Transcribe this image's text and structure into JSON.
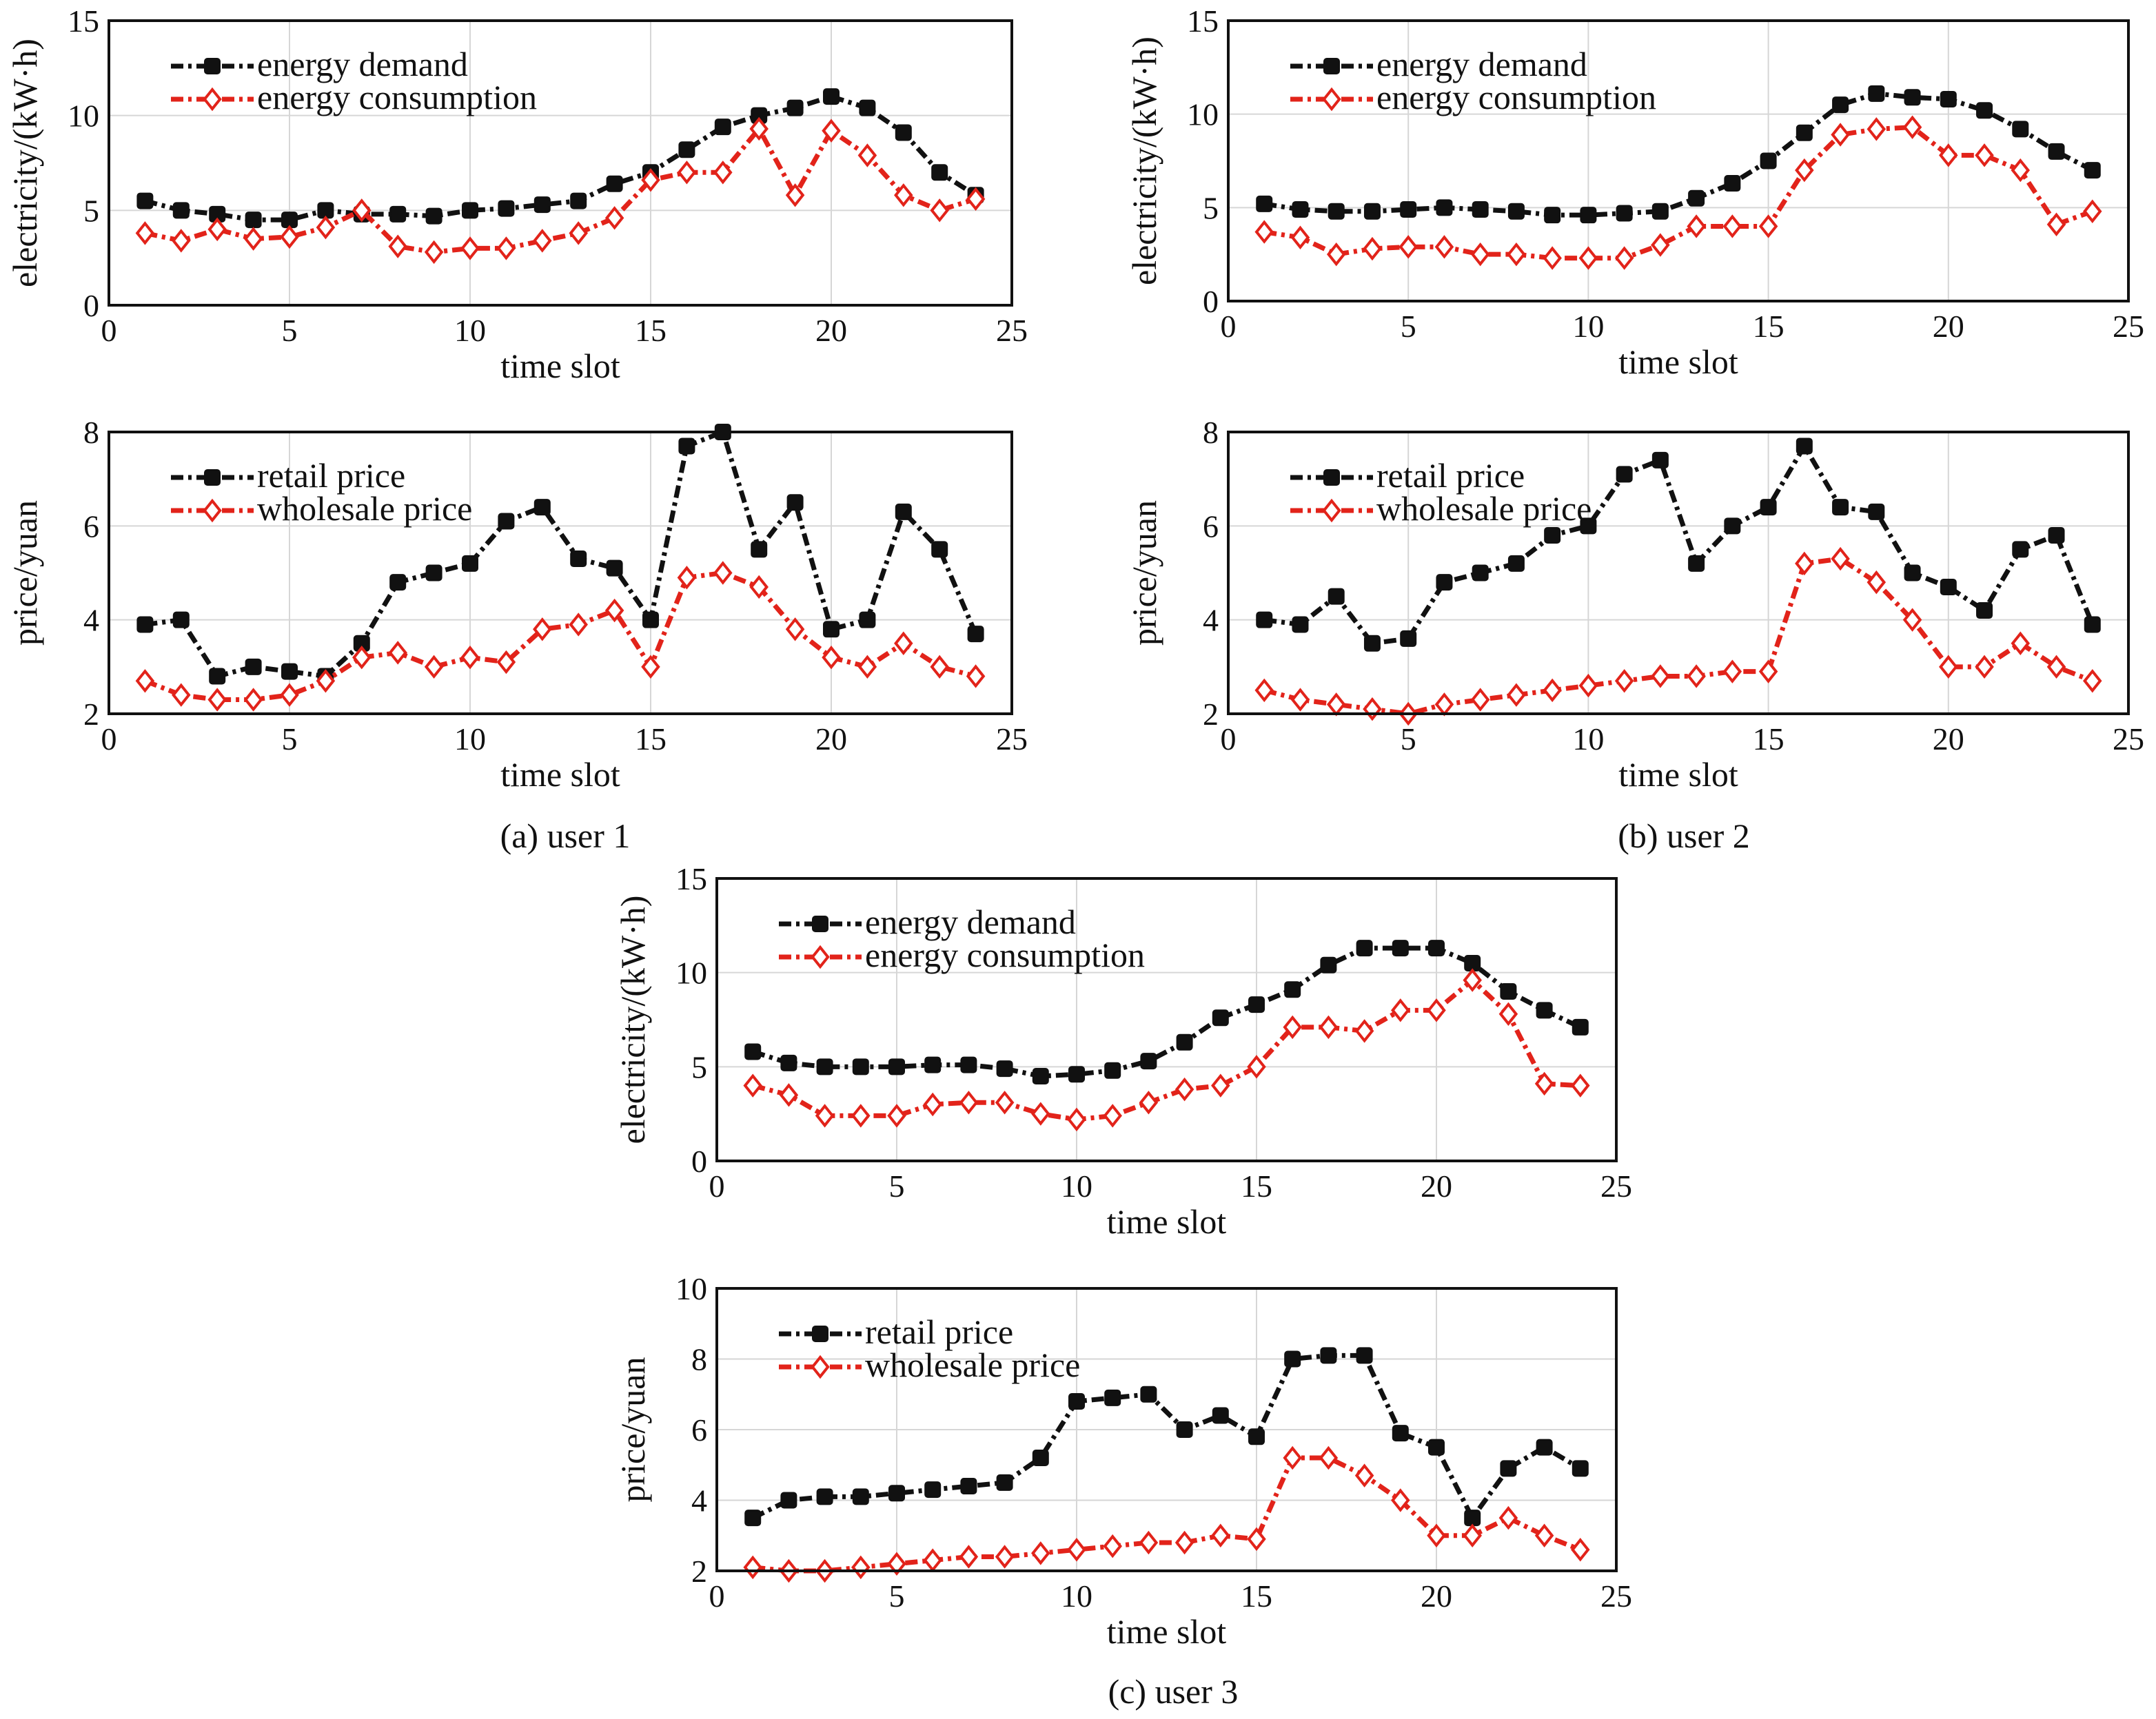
{
  "captions": [
    "(a) user 1",
    "(b) user 2",
    "(c)  user 3"
  ],
  "series_style": {
    "energy demand": {
      "color": "#111111",
      "marker": "filled-square"
    },
    "energy consumption": {
      "color": "#e2231a",
      "marker": "open-diamond"
    },
    "retail price": {
      "color": "#111111",
      "marker": "filled-square"
    },
    "wholesale price": {
      "color": "#e2231a",
      "marker": "open-diamond"
    }
  },
  "chart_data": [
    {
      "id": "user1-energy",
      "type": "line",
      "xlabel": "time slot",
      "ylabel": "electricity/(kW·h)",
      "xlim": [
        0,
        25
      ],
      "ylim": [
        0,
        15
      ],
      "xticks": [
        0,
        5,
        10,
        15,
        20,
        25
      ],
      "yticks": [
        0,
        5,
        10,
        15
      ],
      "grid": true,
      "legend_position": "top-left",
      "x": [
        1,
        2,
        3,
        4,
        5,
        6,
        7,
        8,
        9,
        10,
        11,
        12,
        13,
        14,
        15,
        16,
        17,
        18,
        19,
        20,
        21,
        22,
        23,
        24
      ],
      "series": [
        {
          "name": "energy demand",
          "values": [
            5.5,
            5.0,
            4.8,
            4.5,
            4.5,
            5.0,
            4.8,
            4.8,
            4.7,
            5.0,
            5.1,
            5.3,
            5.5,
            6.4,
            7.0,
            8.2,
            9.4,
            10.0,
            10.4,
            11.0,
            10.4,
            9.1,
            7.0,
            5.8
          ]
        },
        {
          "name": "energy consumption",
          "values": [
            3.8,
            3.4,
            4.0,
            3.5,
            3.6,
            4.1,
            5.0,
            3.1,
            2.8,
            3.0,
            3.0,
            3.4,
            3.8,
            4.6,
            6.6,
            7.0,
            7.0,
            9.3,
            5.8,
            9.2,
            7.9,
            5.8,
            5.0,
            5.6
          ]
        }
      ]
    },
    {
      "id": "user1-price",
      "type": "line",
      "xlabel": "time slot",
      "ylabel": "price/yuan",
      "xlim": [
        0,
        25
      ],
      "ylim": [
        2,
        8
      ],
      "xticks": [
        0,
        5,
        10,
        15,
        20,
        25
      ],
      "yticks": [
        2,
        4,
        6,
        8
      ],
      "grid": true,
      "legend_position": "top-left",
      "x": [
        1,
        2,
        3,
        4,
        5,
        6,
        7,
        8,
        9,
        10,
        11,
        12,
        13,
        14,
        15,
        16,
        17,
        18,
        19,
        20,
        21,
        22,
        23,
        24
      ],
      "series": [
        {
          "name": "retail price",
          "values": [
            3.9,
            4.0,
            2.8,
            3.0,
            2.9,
            2.8,
            3.5,
            4.8,
            5.0,
            5.2,
            6.1,
            6.4,
            5.3,
            5.1,
            4.0,
            7.7,
            8.0,
            5.5,
            6.5,
            3.8,
            4.0,
            6.3,
            5.5,
            3.7
          ]
        },
        {
          "name": "wholesale price",
          "values": [
            2.7,
            2.4,
            2.3,
            2.3,
            2.4,
            2.7,
            3.2,
            3.3,
            3.0,
            3.2,
            3.1,
            3.8,
            3.9,
            4.2,
            3.0,
            4.9,
            5.0,
            4.7,
            3.8,
            3.2,
            3.0,
            3.5,
            3.0,
            2.8
          ]
        }
      ]
    },
    {
      "id": "user2-energy",
      "type": "line",
      "xlabel": "time slot",
      "ylabel": "electricity/(kW·h)",
      "xlim": [
        0,
        25
      ],
      "ylim": [
        0,
        15
      ],
      "xticks": [
        0,
        5,
        10,
        15,
        20,
        25
      ],
      "yticks": [
        0,
        5,
        10,
        15
      ],
      "grid": true,
      "legend_position": "top-left",
      "x": [
        1,
        2,
        3,
        4,
        5,
        6,
        7,
        8,
        9,
        10,
        11,
        12,
        13,
        14,
        15,
        16,
        17,
        18,
        19,
        20,
        21,
        22,
        23,
        24
      ],
      "series": [
        {
          "name": "energy demand",
          "values": [
            5.2,
            4.9,
            4.8,
            4.8,
            4.9,
            5.0,
            4.9,
            4.8,
            4.6,
            4.6,
            4.7,
            4.8,
            5.5,
            6.3,
            7.5,
            9.0,
            10.5,
            11.1,
            10.9,
            10.8,
            10.2,
            9.2,
            8.0,
            7.0
          ]
        },
        {
          "name": "energy consumption",
          "values": [
            3.7,
            3.4,
            2.5,
            2.8,
            2.9,
            2.9,
            2.5,
            2.5,
            2.3,
            2.3,
            2.3,
            3.0,
            4.0,
            4.0,
            4.0,
            7.0,
            8.9,
            9.2,
            9.3,
            7.8,
            7.8,
            7.0,
            4.1,
            4.8
          ]
        }
      ]
    },
    {
      "id": "user2-price",
      "type": "line",
      "xlabel": "time slot",
      "ylabel": "price/yuan",
      "xlim": [
        0,
        25
      ],
      "ylim": [
        2,
        8
      ],
      "xticks": [
        0,
        5,
        10,
        15,
        20,
        25
      ],
      "yticks": [
        2,
        4,
        6,
        8
      ],
      "grid": true,
      "legend_position": "top-left",
      "x": [
        1,
        2,
        3,
        4,
        5,
        6,
        7,
        8,
        9,
        10,
        11,
        12,
        13,
        14,
        15,
        16,
        17,
        18,
        19,
        20,
        21,
        22,
        23,
        24
      ],
      "series": [
        {
          "name": "retail price",
          "values": [
            4.0,
            3.9,
            4.5,
            3.5,
            3.6,
            4.8,
            5.0,
            5.2,
            5.8,
            6.0,
            7.1,
            7.4,
            5.2,
            6.0,
            6.4,
            7.7,
            6.4,
            6.3,
            5.0,
            4.7,
            4.2,
            5.5,
            5.8,
            3.9
          ]
        },
        {
          "name": "wholesale price",
          "values": [
            2.5,
            2.3,
            2.2,
            2.1,
            2.0,
            2.2,
            2.3,
            2.4,
            2.5,
            2.6,
            2.7,
            2.8,
            2.8,
            2.9,
            2.9,
            5.2,
            5.3,
            4.8,
            4.0,
            3.0,
            3.0,
            3.5,
            3.0,
            2.7
          ]
        }
      ]
    },
    {
      "id": "user3-energy",
      "type": "line",
      "xlabel": "time slot",
      "ylabel": "electricity/(kW·h)",
      "xlim": [
        0,
        25
      ],
      "ylim": [
        0,
        15
      ],
      "xticks": [
        0,
        5,
        10,
        15,
        20,
        25
      ],
      "yticks": [
        0,
        5,
        10,
        15
      ],
      "grid": true,
      "legend_position": "top-left",
      "x": [
        1,
        2,
        3,
        4,
        5,
        6,
        7,
        8,
        9,
        10,
        11,
        12,
        13,
        14,
        15,
        16,
        17,
        18,
        19,
        20,
        21,
        22,
        23,
        24
      ],
      "series": [
        {
          "name": "energy demand",
          "values": [
            5.8,
            5.2,
            5.0,
            5.0,
            5.0,
            5.1,
            5.1,
            4.9,
            4.5,
            4.6,
            4.8,
            5.3,
            6.3,
            7.6,
            8.3,
            9.1,
            10.4,
            11.3,
            11.3,
            11.3,
            10.5,
            9.0,
            8.0,
            7.1
          ]
        },
        {
          "name": "energy consumption",
          "values": [
            4.0,
            3.5,
            2.4,
            2.4,
            2.4,
            3.0,
            3.1,
            3.1,
            2.5,
            2.2,
            2.4,
            3.1,
            3.8,
            4.0,
            5.0,
            7.1,
            7.1,
            6.9,
            8.0,
            8.0,
            9.6,
            7.8,
            4.1,
            4.0
          ]
        }
      ]
    },
    {
      "id": "user3-price",
      "type": "line",
      "xlabel": "time slot",
      "ylabel": "price/yuan",
      "xlim": [
        0,
        25
      ],
      "ylim": [
        2,
        10
      ],
      "xticks": [
        0,
        5,
        10,
        15,
        20,
        25
      ],
      "yticks": [
        2,
        4,
        6,
        8,
        10
      ],
      "grid": true,
      "legend_position": "top-left",
      "x": [
        1,
        2,
        3,
        4,
        5,
        6,
        7,
        8,
        9,
        10,
        11,
        12,
        13,
        14,
        15,
        16,
        17,
        18,
        19,
        20,
        21,
        22,
        23,
        24
      ],
      "series": [
        {
          "name": "retail price",
          "values": [
            3.5,
            4.0,
            4.1,
            4.1,
            4.2,
            4.3,
            4.4,
            4.5,
            5.2,
            6.8,
            6.9,
            7.0,
            6.0,
            6.4,
            5.8,
            8.0,
            8.1,
            8.1,
            5.9,
            5.5,
            3.5,
            4.9,
            5.5,
            4.9
          ]
        },
        {
          "name": "wholesale price",
          "values": [
            2.1,
            2.0,
            2.0,
            2.1,
            2.2,
            2.3,
            2.4,
            2.4,
            2.5,
            2.6,
            2.7,
            2.8,
            2.8,
            3.0,
            2.9,
            5.2,
            5.2,
            4.7,
            4.0,
            3.0,
            3.0,
            3.5,
            3.0,
            2.6
          ]
        }
      ]
    }
  ]
}
